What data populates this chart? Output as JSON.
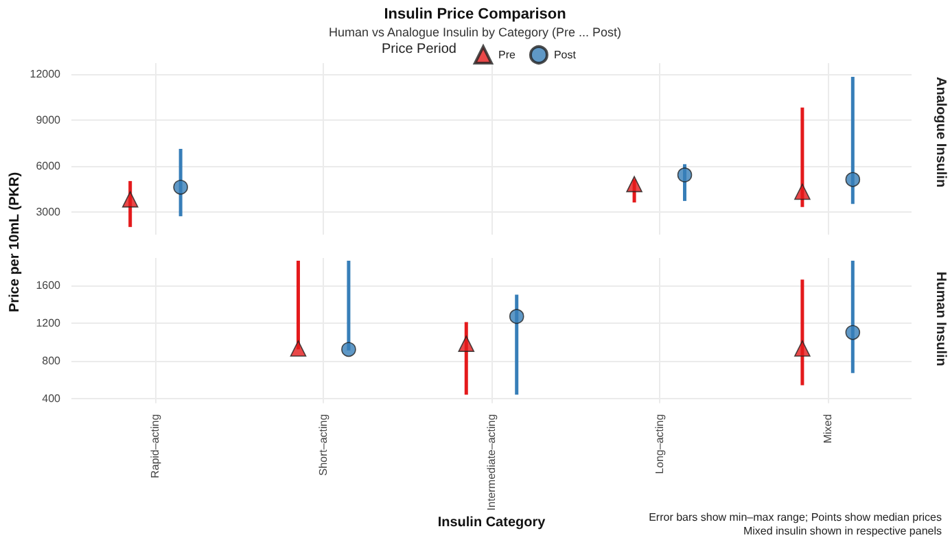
{
  "chart_data": [
    {
      "type": "scatter",
      "title": "Insulin Price Comparison",
      "subtitle": "Human vs Analogue Insulin by Category (Pre ... Post)",
      "legend_title": "Price Period",
      "legend": "top",
      "ylabel": "Price per 10mL (PKR)",
      "y2label": "Analogue Insulin",
      "categories": [
        null,
        null,
        null,
        null,
        null
      ],
      "ylim": [
        1500,
        12700
      ],
      "yticks": [
        3000,
        6000,
        9000,
        12000
      ],
      "grid": true,
      "tick_labels": "y",
      "series": [
        {
          "name": "Pre",
          "color": "#e41a1c",
          "marker": "triangle",
          "values": [
            3800,
            null,
            null,
            4800,
            4300
          ],
          "errors": [
            [
              2000,
              5000
            ],
            null,
            null,
            [
              3600,
              5100
            ],
            [
              3300,
              9800
            ]
          ]
        },
        {
          "name": "Post",
          "color": "#377eb8",
          "marker": "circle",
          "values": [
            4600,
            null,
            null,
            5400,
            5100
          ],
          "errors": [
            [
              2700,
              7100
            ],
            null,
            null,
            [
              3700,
              6100
            ],
            [
              3500,
              11800
            ]
          ]
        }
      ]
    },
    {
      "type": "scatter",
      "xlabel": "Insulin Category",
      "y2label": "Human Insulin",
      "annotations": [
        "Error bars show min–max range; Points show median prices",
        "Mixed insulin shown in respective panels"
      ],
      "categories": [
        "Rapid–acting",
        "Short–acting",
        "Intermediate–acting",
        "Long–acting",
        "Mixed"
      ],
      "ylim": [
        350,
        1890
      ],
      "yticks": [
        400,
        800,
        1200,
        1600
      ],
      "grid": true,
      "series": [
        {
          "color": "#e41a1c",
          "marker": "triangle",
          "values": [
            null,
            930,
            980,
            null,
            930
          ],
          "errors": [
            null,
            [
              920,
              1860
            ],
            [
              440,
              1210
            ],
            null,
            [
              540,
              1660
            ]
          ]
        },
        {
          "color": "#377eb8",
          "marker": "circle",
          "values": [
            null,
            920,
            1270,
            null,
            1100
          ],
          "errors": [
            null,
            [
              910,
              1860
            ],
            [
              440,
              1500
            ],
            null,
            [
              670,
              1860
            ]
          ]
        }
      ]
    }
  ]
}
